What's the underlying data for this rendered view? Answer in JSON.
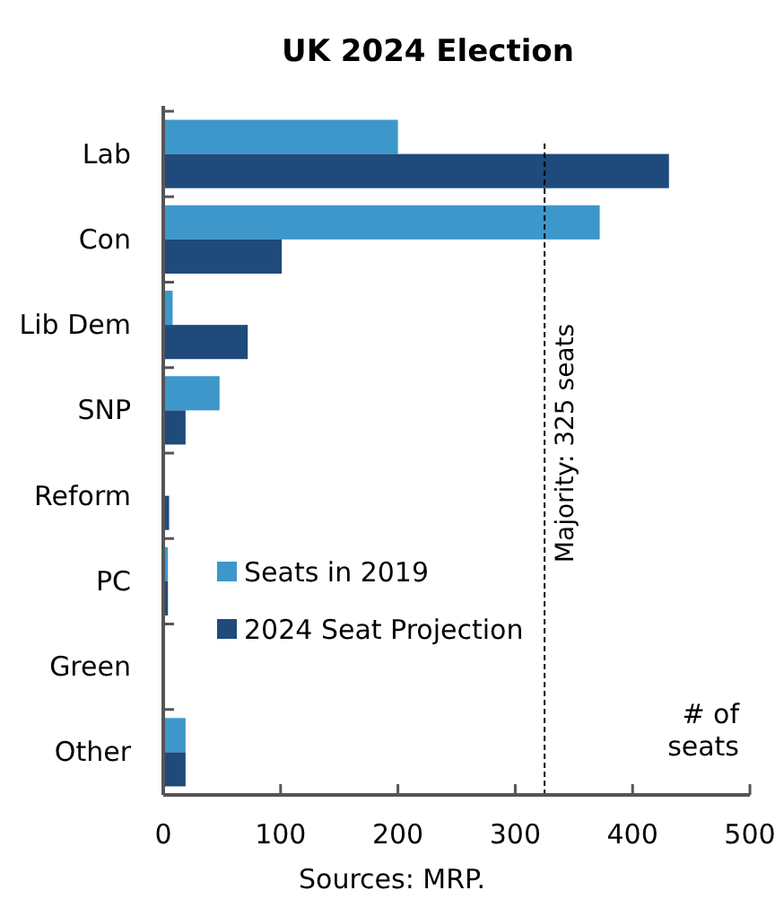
{
  "chart_data": {
    "type": "bar",
    "orientation": "horizontal",
    "title": "UK 2024 Election",
    "xlabel": "# of seats",
    "categories": [
      "Lab",
      "Con",
      "Lib Dem",
      "SNP",
      "Reform",
      "PC",
      "Green",
      "Other"
    ],
    "series": [
      {
        "name": "Seats in 2019",
        "color": "#3d97cb",
        "values": [
          200,
          372,
          8,
          48,
          null,
          4,
          null,
          19
        ]
      },
      {
        "name": "2024 Seat Projection",
        "color": "#1f4a7c",
        "values": [
          431,
          101,
          72,
          19,
          5,
          4,
          null,
          19
        ]
      }
    ],
    "xlim": [
      0,
      500
    ],
    "xticks": [
      0,
      100,
      200,
      300,
      400,
      500
    ],
    "ref_lines": [
      {
        "axis": "x",
        "value": 325,
        "label": "Majority: 325 seats",
        "line_style": "dashed",
        "color": "#000000"
      }
    ],
    "legend": "bottom left",
    "grid": false,
    "annotations": [
      "Sources: MRP."
    ]
  }
}
